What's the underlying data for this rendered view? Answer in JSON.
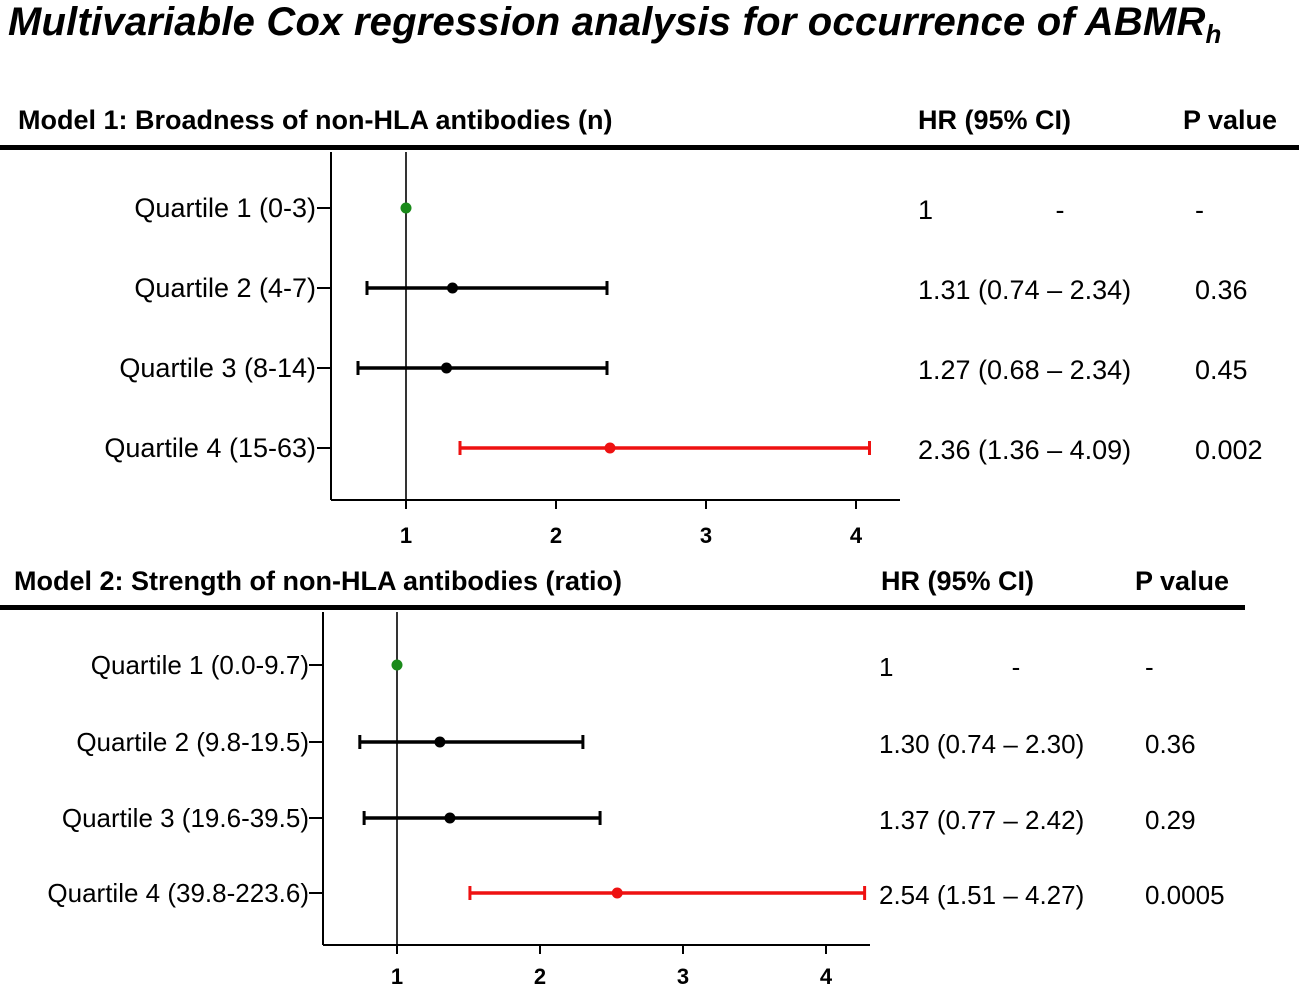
{
  "title_main": "Multivariable Cox regression analysis for occurrence of ABMR",
  "title_sub": "h",
  "chart_data": [
    {
      "type": "forest",
      "title": "Model 1: Broadness of non-HLA antibodies (n)",
      "hr_header": "HR  (95% CI)",
      "p_header": "P value",
      "xticks": [
        1,
        2,
        3,
        4
      ],
      "xlim": [
        0.5,
        4.3
      ],
      "reference_line": 1,
      "rows": [
        {
          "label": "Quartile 1 (0-3)",
          "hr": 1,
          "lo": null,
          "hi": null,
          "hr_text": "1",
          "ci_text": "-",
          "p_text": "-",
          "color": "#1a8a1a"
        },
        {
          "label": "Quartile 2 (4-7)",
          "hr": 1.31,
          "lo": 0.74,
          "hi": 2.34,
          "hr_text": "1.31 (0.74 – 2.34)",
          "ci_text": "",
          "p_text": "0.36",
          "color": "#000000"
        },
        {
          "label": "Quartile 3 (8-14)",
          "hr": 1.27,
          "lo": 0.68,
          "hi": 2.34,
          "hr_text": "1.27 (0.68 – 2.34)",
          "ci_text": "",
          "p_text": "0.45",
          "color": "#000000"
        },
        {
          "label": "Quartile 4 (15-63)",
          "hr": 2.36,
          "lo": 1.36,
          "hi": 4.09,
          "hr_text": "2.36 (1.36 – 4.09)",
          "ci_text": "",
          "p_text": "0.002",
          "color": "#ee1111"
        }
      ]
    },
    {
      "type": "forest",
      "title": "Model 2: Strength of non-HLA antibodies (ratio)",
      "hr_header": "HR  (95% CI)",
      "p_header": "P value",
      "xticks": [
        1,
        2,
        3,
        4
      ],
      "xlim": [
        0.5,
        4.3
      ],
      "reference_line": 1,
      "rows": [
        {
          "label": "Quartile 1 (0.0-9.7)",
          "hr": 1,
          "lo": null,
          "hi": null,
          "hr_text": "1",
          "ci_text": "-",
          "p_text": "-",
          "color": "#1a8a1a"
        },
        {
          "label": "Quartile 2 (9.8-19.5)",
          "hr": 1.3,
          "lo": 0.74,
          "hi": 2.3,
          "hr_text": "1.30 (0.74 – 2.30)",
          "ci_text": "",
          "p_text": "0.36",
          "color": "#000000"
        },
        {
          "label": "Quartile 3 (19.6-39.5)",
          "hr": 1.37,
          "lo": 0.77,
          "hi": 2.42,
          "hr_text": "1.37 (0.77 – 2.42)",
          "ci_text": "",
          "p_text": "0.29",
          "color": "#000000"
        },
        {
          "label": "Quartile 4 (39.8-223.6)",
          "hr": 2.54,
          "lo": 1.51,
          "hi": 4.27,
          "hr_text": "2.54 (1.51 – 4.27)",
          "ci_text": "",
          "p_text": "0.0005",
          "color": "#ee1111"
        }
      ]
    }
  ]
}
